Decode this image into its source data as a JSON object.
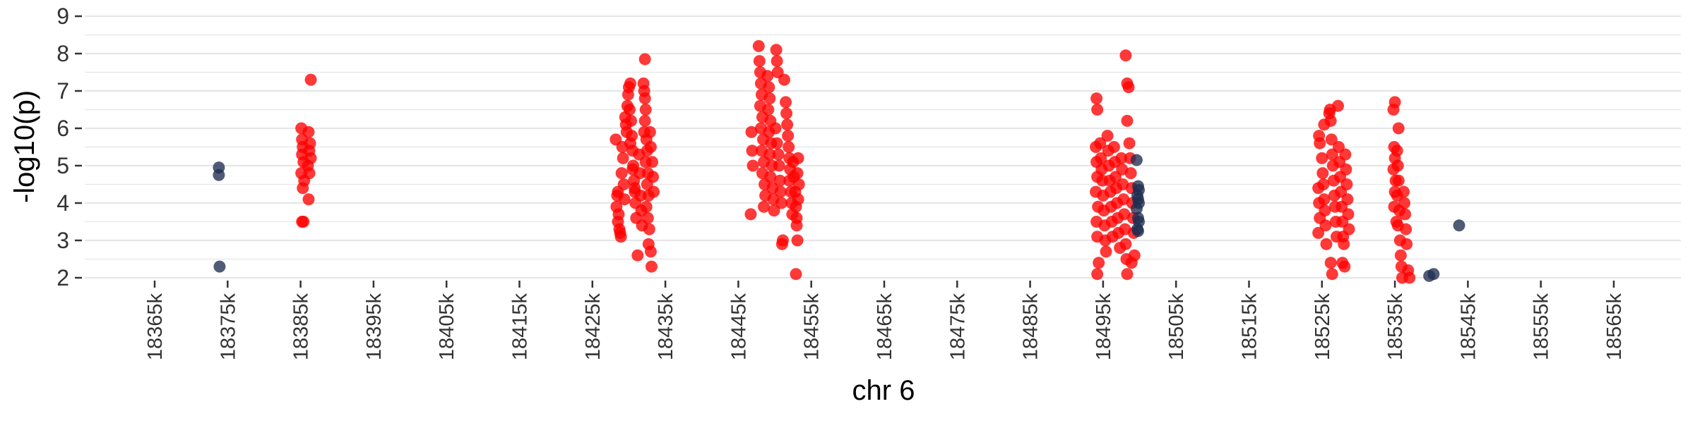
{
  "chart_data": {
    "type": "scatter",
    "title": "",
    "xlabel": "chr 6",
    "ylabel": "-log10(p)",
    "xlim": [
      18365,
      18565
    ],
    "ylim": [
      2,
      9
    ],
    "x_unit_suffix": "k",
    "x_ticks": [
      18365,
      18375,
      18385,
      18395,
      18405,
      18415,
      18425,
      18435,
      18445,
      18455,
      18465,
      18475,
      18485,
      18495,
      18505,
      18515,
      18525,
      18535,
      18545,
      18555,
      18565
    ],
    "x_tick_labels": [
      "18365k",
      "18375k",
      "18385k",
      "18395k",
      "18405k",
      "18415k",
      "18425k",
      "18435k",
      "18445k",
      "18455k",
      "18465k",
      "18475k",
      "18485k",
      "18495k",
      "18505k",
      "18515k",
      "18525k",
      "18535k",
      "18545k",
      "18555k",
      "18565k"
    ],
    "y_ticks": [
      2,
      3,
      4,
      5,
      6,
      7,
      8,
      9
    ],
    "y_tick_labels": [
      "2",
      "3",
      "4",
      "5",
      "6",
      "7",
      "8",
      "9"
    ],
    "grid": true,
    "colors": {
      "background": "#ffffff",
      "grid": "#e6e6e6",
      "axis_text": "#333333"
    },
    "series": [
      {
        "color": "#ff0000",
        "points": [
          [
            18385.1,
            6.0
          ],
          [
            18385.2,
            5.7
          ],
          [
            18385.3,
            5.5
          ],
          [
            18385.2,
            5.3
          ],
          [
            18385.4,
            5.1
          ],
          [
            18385.1,
            4.8
          ],
          [
            18385.5,
            4.6
          ],
          [
            18385.3,
            4.4
          ],
          [
            18385.2,
            3.5
          ],
          [
            18385.4,
            3.5
          ],
          [
            18386.1,
            5.9
          ],
          [
            18386.3,
            5.6
          ],
          [
            18386.2,
            5.4
          ],
          [
            18386.4,
            5.2
          ],
          [
            18386.0,
            5.0
          ],
          [
            18386.2,
            4.8
          ],
          [
            18386.1,
            4.1
          ],
          [
            18386.4,
            7.3
          ],
          [
            18428.2,
            5.7
          ],
          [
            18428.5,
            4.3
          ],
          [
            18428.4,
            4.2
          ],
          [
            18428.3,
            3.9
          ],
          [
            18428.6,
            3.7
          ],
          [
            18428.5,
            3.5
          ],
          [
            18428.7,
            3.3
          ],
          [
            18428.8,
            3.2
          ],
          [
            18428.9,
            3.1
          ],
          [
            18429.1,
            5.5
          ],
          [
            18429.2,
            5.2
          ],
          [
            18429.0,
            4.8
          ],
          [
            18429.3,
            4.5
          ],
          [
            18429.4,
            4.1
          ],
          [
            18429.5,
            6.3
          ],
          [
            18429.6,
            6.1
          ],
          [
            18429.7,
            5.9
          ],
          [
            18429.8,
            6.6
          ],
          [
            18429.9,
            6.9
          ],
          [
            18430.0,
            7.1
          ],
          [
            18430.2,
            7.2
          ],
          [
            18430.1,
            6.5
          ],
          [
            18430.3,
            6.2
          ],
          [
            18430.4,
            5.8
          ],
          [
            18430.5,
            5.4
          ],
          [
            18430.6,
            5.0
          ],
          [
            18430.7,
            4.6
          ],
          [
            18430.8,
            4.3
          ],
          [
            18430.9,
            4.0
          ],
          [
            18431.0,
            3.6
          ],
          [
            18431.2,
            2.6
          ],
          [
            18430.2,
            5.6
          ],
          [
            18430.5,
            4.9
          ],
          [
            18430.8,
            4.4
          ],
          [
            18431.4,
            5.3
          ],
          [
            18431.5,
            4.8
          ],
          [
            18431.6,
            4.2
          ],
          [
            18431.7,
            3.8
          ],
          [
            18431.8,
            3.4
          ],
          [
            18432.0,
            7.2
          ],
          [
            18432.1,
            7.0
          ],
          [
            18432.2,
            6.8
          ],
          [
            18432.3,
            6.5
          ],
          [
            18432.2,
            6.2
          ],
          [
            18432.1,
            5.9
          ],
          [
            18432.4,
            5.7
          ],
          [
            18432.5,
            5.4
          ],
          [
            18432.3,
            5.1
          ],
          [
            18432.6,
            4.8
          ],
          [
            18432.5,
            4.5
          ],
          [
            18432.7,
            4.2
          ],
          [
            18432.4,
            3.9
          ],
          [
            18432.6,
            3.6
          ],
          [
            18432.8,
            3.3
          ],
          [
            18432.7,
            2.9
          ],
          [
            18433.0,
            2.7
          ],
          [
            18433.1,
            2.3
          ],
          [
            18432.2,
            7.85
          ],
          [
            18432.9,
            5.9
          ],
          [
            18433.0,
            5.5
          ],
          [
            18433.2,
            5.1
          ],
          [
            18433.3,
            4.7
          ],
          [
            18433.4,
            4.3
          ],
          [
            18446.8,
            5.9
          ],
          [
            18446.9,
            5.4
          ],
          [
            18447.0,
            5.0
          ],
          [
            18446.7,
            3.7
          ],
          [
            18447.8,
            8.2
          ],
          [
            18447.9,
            7.8
          ],
          [
            18448.0,
            7.5
          ],
          [
            18448.1,
            7.2
          ],
          [
            18448.2,
            6.9
          ],
          [
            18448.0,
            6.6
          ],
          [
            18448.3,
            6.3
          ],
          [
            18448.1,
            6.0
          ],
          [
            18448.4,
            5.7
          ],
          [
            18448.2,
            5.4
          ],
          [
            18448.5,
            5.1
          ],
          [
            18448.3,
            4.8
          ],
          [
            18448.6,
            4.5
          ],
          [
            18448.7,
            4.2
          ],
          [
            18448.5,
            3.9
          ],
          [
            18449.0,
            7.4
          ],
          [
            18449.2,
            7.1
          ],
          [
            18449.3,
            6.8
          ],
          [
            18449.1,
            6.5
          ],
          [
            18449.4,
            6.2
          ],
          [
            18449.2,
            5.9
          ],
          [
            18449.5,
            5.6
          ],
          [
            18449.3,
            5.3
          ],
          [
            18449.6,
            5.0
          ],
          [
            18449.4,
            4.7
          ],
          [
            18449.7,
            4.4
          ],
          [
            18449.8,
            4.1
          ],
          [
            18449.9,
            3.8
          ],
          [
            18450.2,
            8.1
          ],
          [
            18450.3,
            7.8
          ],
          [
            18450.4,
            7.5
          ],
          [
            18450.1,
            6.0
          ],
          [
            18450.3,
            5.6
          ],
          [
            18450.5,
            5.3
          ],
          [
            18450.6,
            5.0
          ],
          [
            18450.7,
            4.6
          ],
          [
            18450.8,
            4.3
          ],
          [
            18450.9,
            4.0
          ],
          [
            18451.1,
            3.0
          ],
          [
            18451.0,
            2.9
          ],
          [
            18451.3,
            7.3
          ],
          [
            18451.5,
            6.7
          ],
          [
            18451.6,
            6.4
          ],
          [
            18451.7,
            6.1
          ],
          [
            18451.8,
            5.8
          ],
          [
            18451.9,
            5.5
          ],
          [
            18452.0,
            5.2
          ],
          [
            18452.1,
            4.9
          ],
          [
            18452.0,
            4.6
          ],
          [
            18452.2,
            4.3
          ],
          [
            18452.3,
            4.0
          ],
          [
            18452.4,
            3.7
          ],
          [
            18452.5,
            5.1
          ],
          [
            18452.6,
            4.7
          ],
          [
            18452.8,
            4.3
          ],
          [
            18452.9,
            3.9
          ],
          [
            18453.0,
            3.4
          ],
          [
            18453.1,
            3.0
          ],
          [
            18452.9,
            2.1
          ],
          [
            18453.2,
            5.2
          ],
          [
            18453.1,
            4.8
          ],
          [
            18453.3,
            4.5
          ],
          [
            18453.2,
            4.1
          ],
          [
            18453.0,
            3.6
          ],
          [
            18494.1,
            6.8
          ],
          [
            18494.2,
            6.5
          ],
          [
            18494.0,
            5.5
          ],
          [
            18494.1,
            5.1
          ],
          [
            18494.2,
            4.7
          ],
          [
            18494.0,
            4.3
          ],
          [
            18494.3,
            3.9
          ],
          [
            18494.1,
            3.5
          ],
          [
            18494.2,
            3.1
          ],
          [
            18494.4,
            2.4
          ],
          [
            18494.2,
            2.1
          ],
          [
            18494.6,
            5.6
          ],
          [
            18494.7,
            5.2
          ],
          [
            18494.8,
            4.9
          ],
          [
            18494.9,
            4.6
          ],
          [
            18495.0,
            4.2
          ],
          [
            18495.1,
            3.8
          ],
          [
            18495.2,
            3.4
          ],
          [
            18495.3,
            3.0
          ],
          [
            18495.4,
            2.7
          ],
          [
            18495.6,
            5.8
          ],
          [
            18495.7,
            5.4
          ],
          [
            18495.8,
            5.0
          ],
          [
            18495.9,
            4.6
          ],
          [
            18496.0,
            4.3
          ],
          [
            18496.1,
            3.9
          ],
          [
            18496.2,
            3.5
          ],
          [
            18496.3,
            3.1
          ],
          [
            18496.5,
            5.5
          ],
          [
            18496.6,
            5.1
          ],
          [
            18496.7,
            4.7
          ],
          [
            18496.8,
            4.4
          ],
          [
            18496.9,
            4.0
          ],
          [
            18497.0,
            3.6
          ],
          [
            18497.1,
            3.2
          ],
          [
            18497.3,
            2.8
          ],
          [
            18497.5,
            5.2
          ],
          [
            18497.6,
            4.9
          ],
          [
            18497.7,
            4.5
          ],
          [
            18497.8,
            4.1
          ],
          [
            18497.9,
            3.7
          ],
          [
            18498.0,
            3.3
          ],
          [
            18498.1,
            2.9
          ],
          [
            18498.2,
            2.5
          ],
          [
            18498.3,
            2.1
          ],
          [
            18498.1,
            7.95
          ],
          [
            18498.3,
            7.2
          ],
          [
            18498.5,
            7.1
          ],
          [
            18498.3,
            6.2
          ],
          [
            18498.6,
            5.6
          ],
          [
            18498.7,
            5.2
          ],
          [
            18498.8,
            4.8
          ],
          [
            18498.9,
            4.4
          ],
          [
            18499.0,
            4.0
          ],
          [
            18499.1,
            3.6
          ],
          [
            18499.2,
            3.2
          ],
          [
            18498.9,
            2.4
          ],
          [
            18499.3,
            2.6
          ]
        ]
      },
      {
        "color": "#ff0000",
        "points": [
          [
            18524.6,
            5.8
          ],
          [
            18524.7,
            5.6
          ],
          [
            18524.5,
            4.4
          ],
          [
            18524.6,
            4.0
          ],
          [
            18524.7,
            3.6
          ],
          [
            18524.5,
            3.2
          ],
          [
            18525.0,
            5.2
          ],
          [
            18525.1,
            4.8
          ],
          [
            18525.2,
            4.5
          ],
          [
            18525.3,
            4.1
          ],
          [
            18525.4,
            3.8
          ],
          [
            18525.5,
            3.4
          ],
          [
            18525.6,
            2.9
          ],
          [
            18525.3,
            6.1
          ],
          [
            18526.0,
            6.4
          ],
          [
            18526.1,
            6.5
          ],
          [
            18526.2,
            6.2
          ],
          [
            18526.3,
            5.7
          ],
          [
            18526.4,
            5.3
          ],
          [
            18526.5,
            5.0
          ],
          [
            18526.6,
            4.6
          ],
          [
            18526.7,
            4.2
          ],
          [
            18526.8,
            3.9
          ],
          [
            18526.9,
            3.5
          ],
          [
            18527.0,
            3.1
          ],
          [
            18526.2,
            2.4
          ],
          [
            18526.4,
            2.1
          ],
          [
            18527.2,
            6.6
          ],
          [
            18527.3,
            5.5
          ],
          [
            18527.4,
            5.1
          ],
          [
            18527.5,
            4.7
          ],
          [
            18527.6,
            4.3
          ],
          [
            18527.7,
            3.9
          ],
          [
            18527.8,
            3.5
          ],
          [
            18527.9,
            3.1
          ],
          [
            18528.0,
            2.9
          ],
          [
            18527.8,
            2.4
          ],
          [
            18528.1,
            2.3
          ],
          [
            18528.2,
            5.3
          ],
          [
            18528.3,
            4.9
          ],
          [
            18528.4,
            4.5
          ],
          [
            18528.5,
            4.1
          ],
          [
            18528.6,
            3.7
          ],
          [
            18528.7,
            3.3
          ],
          [
            18534.8,
            6.5
          ],
          [
            18535.0,
            6.7
          ],
          [
            18534.9,
            5.5
          ],
          [
            18535.0,
            5.2
          ],
          [
            18534.8,
            4.9
          ],
          [
            18535.1,
            4.6
          ],
          [
            18535.0,
            4.3
          ],
          [
            18534.9,
            3.9
          ],
          [
            18535.2,
            3.5
          ],
          [
            18535.3,
            5.4
          ],
          [
            18535.4,
            5.0
          ],
          [
            18535.5,
            4.6
          ],
          [
            18535.3,
            4.2
          ],
          [
            18535.6,
            3.8
          ],
          [
            18535.4,
            3.4
          ],
          [
            18535.7,
            3.0
          ],
          [
            18535.5,
            6.0
          ],
          [
            18535.8,
            2.6
          ],
          [
            18535.9,
            2.3
          ],
          [
            18536.0,
            2.0
          ],
          [
            18536.2,
            4.3
          ],
          [
            18536.3,
            4.0
          ],
          [
            18536.4,
            3.7
          ],
          [
            18536.5,
            3.3
          ],
          [
            18536.6,
            2.9
          ],
          [
            18536.8,
            2.2
          ],
          [
            18537.0,
            2.0
          ]
        ]
      },
      {
        "color": "#1f2d4f",
        "points": [
          [
            18373.8,
            4.95
          ],
          [
            18373.8,
            4.75
          ],
          [
            18373.9,
            2.3
          ],
          [
            18499.6,
            5.15
          ],
          [
            18499.8,
            4.45
          ],
          [
            18499.9,
            4.35
          ],
          [
            18499.7,
            4.2
          ],
          [
            18499.8,
            4.1
          ],
          [
            18499.9,
            4.0
          ],
          [
            18499.6,
            3.85
          ],
          [
            18499.8,
            3.6
          ],
          [
            18499.9,
            3.5
          ],
          [
            18499.7,
            3.3
          ],
          [
            18499.8,
            3.25
          ],
          [
            18539.7,
            2.05
          ],
          [
            18540.3,
            2.1
          ],
          [
            18543.8,
            3.4
          ]
        ]
      }
    ]
  }
}
